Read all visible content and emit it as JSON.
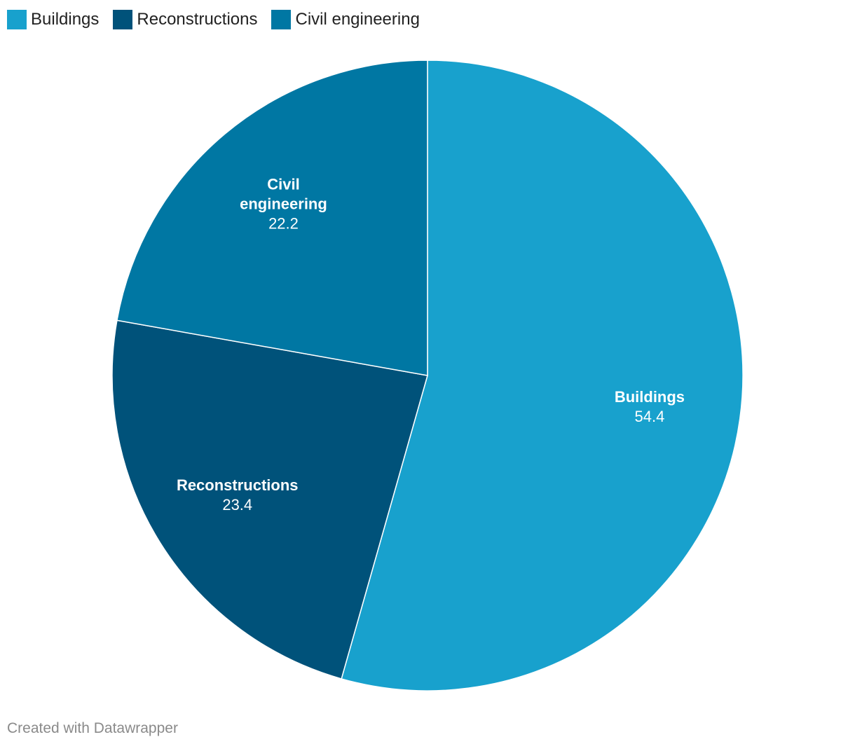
{
  "chart_data": {
    "type": "pie",
    "categories": [
      "Buildings",
      "Reconstructions",
      "Civil engineering"
    ],
    "values": [
      54.4,
      23.4,
      22.2
    ],
    "colors": [
      "#18a1cd",
      "#00527a",
      "#0077a3"
    ],
    "legend": "top-left",
    "slice_labels": [
      [
        "Buildings"
      ],
      [
        "Reconstructions"
      ],
      [
        "Civil",
        "engineering"
      ]
    ]
  },
  "footer": {
    "credit": "Created with Datawrapper"
  }
}
